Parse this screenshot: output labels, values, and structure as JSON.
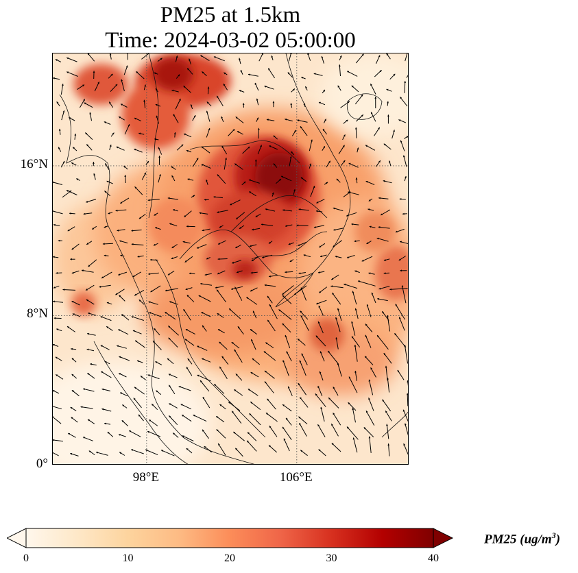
{
  "title": {
    "line1": "PM25 at 1.5km",
    "line2": "Time: 2024-03-02 05:00:00"
  },
  "map": {
    "region": "Southeast Asia (Indochina)",
    "lon_range": [
      93,
      112
    ],
    "lat_range": [
      0,
      22
    ],
    "lat_ticks": [
      {
        "value": 16,
        "label": "16°N"
      },
      {
        "value": 8,
        "label": "8°N"
      },
      {
        "value": 0,
        "label": "0°"
      }
    ],
    "lon_ticks": [
      {
        "value": 98,
        "label": "98°E"
      },
      {
        "value": 106,
        "label": "106°E"
      }
    ],
    "gridlines": "dotted",
    "wind_vectors": true,
    "hotspots_description": "highest PM25 over Laos/Thailand/Cambodia border region and northern Myanmar"
  },
  "colorbar": {
    "label": "PM25 (ug/m",
    "label_superscript": "3",
    "label_close": ")",
    "min": 0,
    "max": 40,
    "extend": "both",
    "colormap": "OrRd",
    "colors": [
      "#fff7ec",
      "#fee8c8",
      "#fdd49e",
      "#fdbb84",
      "#fc8d59",
      "#ef6548",
      "#d7301f",
      "#b30000",
      "#7f0000"
    ],
    "ticks": [
      {
        "value": 0,
        "label": "0"
      },
      {
        "value": 10,
        "label": "10"
      },
      {
        "value": 20,
        "label": "20"
      },
      {
        "value": 30,
        "label": "30"
      },
      {
        "value": 40,
        "label": "40"
      }
    ]
  }
}
